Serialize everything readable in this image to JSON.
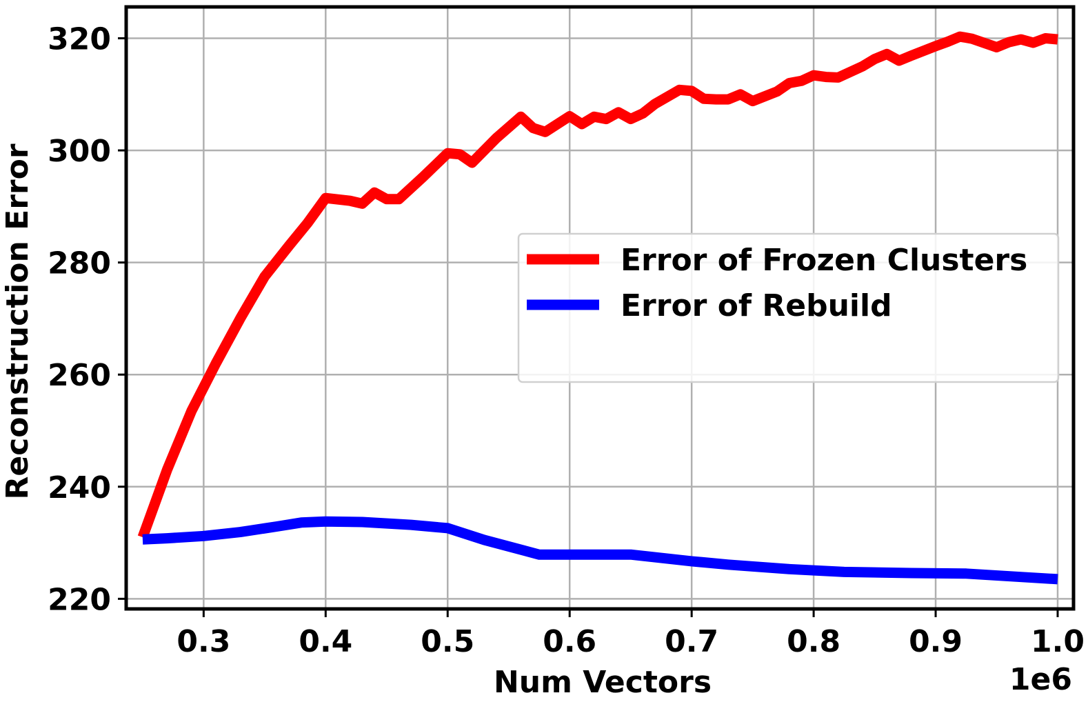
{
  "chart_data": {
    "type": "line",
    "xlabel": "Num Vectors",
    "ylabel": "Reconstruction Error",
    "x_offset_label": "1e6",
    "xlim": [
      0.2365,
      1.013
    ],
    "ylim": [
      218.2,
      325.6
    ],
    "x_ticks": [
      0.3,
      0.4,
      0.5,
      0.6,
      0.7,
      0.8,
      0.9,
      1.0
    ],
    "x_tick_labels": [
      "0.3",
      "0.4",
      "0.5",
      "0.6",
      "0.7",
      "0.8",
      "0.9",
      "1.0"
    ],
    "y_ticks": [
      220,
      240,
      260,
      280,
      300,
      320
    ],
    "y_tick_labels": [
      "220",
      "240",
      "260",
      "280",
      "300",
      "320"
    ],
    "grid": true,
    "legend_position": "center-right",
    "series": [
      {
        "name": "Error of Frozen Clusters",
        "color": "#ff0000",
        "x": [
          0.25,
          0.27,
          0.29,
          0.31,
          0.33,
          0.35,
          0.37,
          0.385,
          0.4,
          0.42,
          0.43,
          0.44,
          0.45,
          0.46,
          0.48,
          0.5,
          0.51,
          0.52,
          0.54,
          0.56,
          0.57,
          0.58,
          0.6,
          0.61,
          0.62,
          0.63,
          0.64,
          0.65,
          0.66,
          0.67,
          0.69,
          0.7,
          0.71,
          0.72,
          0.73,
          0.74,
          0.75,
          0.77,
          0.78,
          0.79,
          0.8,
          0.81,
          0.82,
          0.84,
          0.85,
          0.86,
          0.87,
          0.88,
          0.9,
          0.91,
          0.92,
          0.93,
          0.95,
          0.96,
          0.97,
          0.98,
          0.99,
          1.0
        ],
        "y": [
          231,
          243,
          253.5,
          262,
          270,
          277.5,
          283,
          287,
          291.5,
          291,
          290.5,
          292.5,
          291.3,
          291.3,
          295.3,
          299.5,
          299.3,
          297.8,
          302.2,
          306,
          304,
          303.3,
          306.1,
          304.7,
          306,
          305.6,
          306.8,
          305.6,
          306.6,
          308.3,
          310.8,
          310.6,
          309.2,
          309.1,
          309.1,
          310,
          308.8,
          310.5,
          312,
          312.4,
          313.4,
          313.1,
          313,
          315,
          316.3,
          317.2,
          316,
          316.9,
          318.6,
          319.4,
          320.3,
          319.9,
          318.4,
          319.3,
          319.8,
          319.2,
          320,
          319.8
        ]
      },
      {
        "name": "Error of Rebuild",
        "color": "#0000ff",
        "x": [
          0.25,
          0.27,
          0.3,
          0.33,
          0.36,
          0.38,
          0.4,
          0.43,
          0.47,
          0.5,
          0.53,
          0.575,
          0.6,
          0.65,
          0.7,
          0.73,
          0.78,
          0.825,
          0.88,
          0.925,
          0.97,
          1.0
        ],
        "y": [
          230.6,
          230.8,
          231.2,
          231.9,
          232.9,
          233.6,
          233.8,
          233.7,
          233.2,
          232.6,
          230.5,
          227.9,
          227.9,
          227.9,
          226.7,
          226.1,
          225.3,
          224.8,
          224.6,
          224.5,
          223.9,
          223.5
        ]
      }
    ]
  }
}
